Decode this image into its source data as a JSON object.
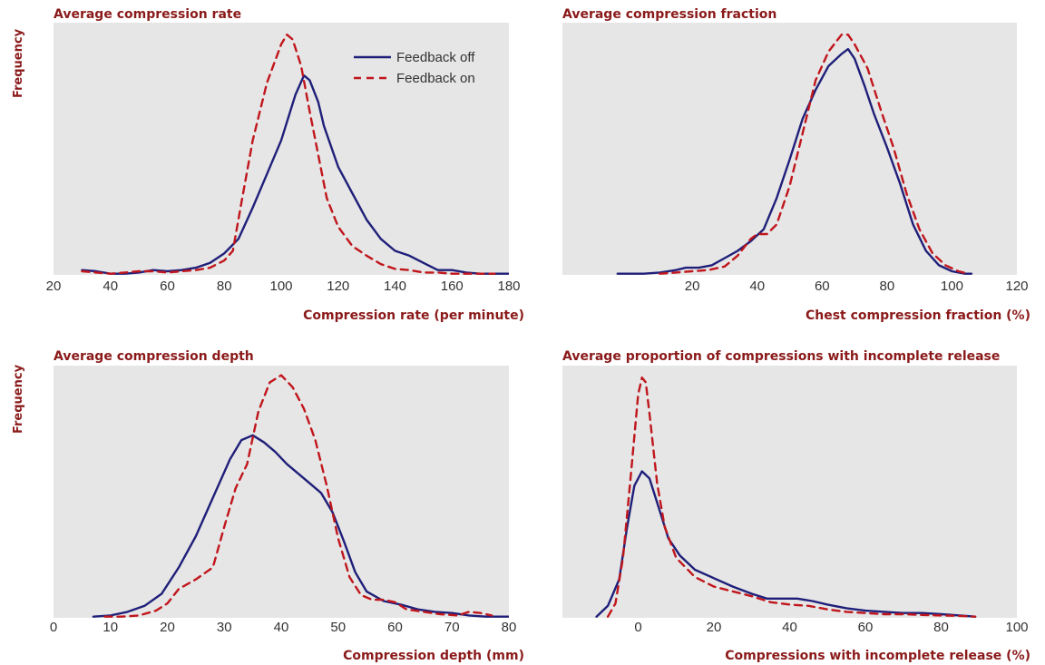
{
  "colors": {
    "off": "#1f1f7a",
    "on": "#c0161c",
    "panel": "#e6e6e6",
    "title": "#8b1a1a",
    "tick": "#333333"
  },
  "legend": {
    "off": "Feedback off",
    "on": "Feedback on"
  },
  "chart_data": [
    {
      "type": "line",
      "title": "Average compression rate",
      "xlabel": "Compression rate (per minute)",
      "ylabel": "Frequency",
      "xlim": [
        20,
        180
      ],
      "xticks": [
        "20",
        "40",
        "60",
        "80",
        "100",
        "120",
        "140",
        "160",
        "180"
      ],
      "ylim": [
        0,
        1.05
      ],
      "grid": false,
      "legend_position": "top-right",
      "series": [
        {
          "name": "Feedback off",
          "style": "solid",
          "points": [
            [
              30,
              0.02
            ],
            [
              35,
              0.015
            ],
            [
              40,
              0.005
            ],
            [
              45,
              0.005
            ],
            [
              50,
              0.01
            ],
            [
              55,
              0.02
            ],
            [
              60,
              0.015
            ],
            [
              65,
              0.02
            ],
            [
              70,
              0.03
            ],
            [
              75,
              0.05
            ],
            [
              80,
              0.09
            ],
            [
              85,
              0.15
            ],
            [
              90,
              0.28
            ],
            [
              95,
              0.42
            ],
            [
              100,
              0.56
            ],
            [
              105,
              0.75
            ],
            [
              108,
              0.83
            ],
            [
              110,
              0.81
            ],
            [
              113,
              0.72
            ],
            [
              115,
              0.62
            ],
            [
              120,
              0.45
            ],
            [
              125,
              0.34
            ],
            [
              130,
              0.23
            ],
            [
              135,
              0.15
            ],
            [
              140,
              0.1
            ],
            [
              145,
              0.08
            ],
            [
              150,
              0.05
            ],
            [
              155,
              0.02
            ],
            [
              160,
              0.02
            ],
            [
              165,
              0.01
            ],
            [
              170,
              0.005
            ],
            [
              175,
              0.005
            ],
            [
              180,
              0.005
            ]
          ]
        },
        {
          "name": "Feedback on",
          "style": "dashed",
          "points": [
            [
              30,
              0.015
            ],
            [
              35,
              0.01
            ],
            [
              40,
              0.005
            ],
            [
              45,
              0.01
            ],
            [
              50,
              0.015
            ],
            [
              55,
              0.015
            ],
            [
              60,
              0.01
            ],
            [
              65,
              0.015
            ],
            [
              70,
              0.02
            ],
            [
              75,
              0.03
            ],
            [
              80,
              0.06
            ],
            [
              83,
              0.1
            ],
            [
              86,
              0.3
            ],
            [
              90,
              0.56
            ],
            [
              95,
              0.8
            ],
            [
              100,
              0.96
            ],
            [
              102,
              1.0
            ],
            [
              104,
              0.98
            ],
            [
              107,
              0.87
            ],
            [
              110,
              0.68
            ],
            [
              113,
              0.5
            ],
            [
              116,
              0.32
            ],
            [
              120,
              0.2
            ],
            [
              125,
              0.12
            ],
            [
              130,
              0.08
            ],
            [
              135,
              0.045
            ],
            [
              140,
              0.025
            ],
            [
              145,
              0.02
            ],
            [
              150,
              0.01
            ],
            [
              155,
              0.01
            ],
            [
              160,
              0.005
            ],
            [
              165,
              0.005
            ],
            [
              170,
              0.005
            ],
            [
              175,
              0.005
            ]
          ]
        }
      ]
    },
    {
      "type": "line",
      "title": "Average compression fraction",
      "xlabel": "Chest compression fraction (%)",
      "ylabel": "",
      "xlim": [
        -20,
        120
      ],
      "xticks": [
        "20",
        "40",
        "60",
        "80",
        "100",
        "120"
      ],
      "ylim": [
        0,
        1.05
      ],
      "grid": false,
      "series": [
        {
          "name": "Feedback off",
          "style": "solid",
          "points": [
            [
              -3,
              0.005
            ],
            [
              0,
              0.005
            ],
            [
              5,
              0.005
            ],
            [
              10,
              0.01
            ],
            [
              15,
              0.02
            ],
            [
              18,
              0.03
            ],
            [
              22,
              0.03
            ],
            [
              26,
              0.04
            ],
            [
              30,
              0.07
            ],
            [
              34,
              0.1
            ],
            [
              38,
              0.14
            ],
            [
              42,
              0.19
            ],
            [
              46,
              0.32
            ],
            [
              50,
              0.48
            ],
            [
              54,
              0.65
            ],
            [
              58,
              0.77
            ],
            [
              62,
              0.87
            ],
            [
              66,
              0.92
            ],
            [
              68,
              0.94
            ],
            [
              70,
              0.9
            ],
            [
              73,
              0.79
            ],
            [
              76,
              0.67
            ],
            [
              80,
              0.53
            ],
            [
              84,
              0.38
            ],
            [
              88,
              0.21
            ],
            [
              92,
              0.1
            ],
            [
              96,
              0.04
            ],
            [
              100,
              0.015
            ],
            [
              104,
              0.005
            ],
            [
              106,
              0.005
            ]
          ]
        },
        {
          "name": "Feedback on",
          "style": "dashed",
          "points": [
            [
              10,
              0.005
            ],
            [
              15,
              0.01
            ],
            [
              20,
              0.015
            ],
            [
              25,
              0.02
            ],
            [
              30,
              0.035
            ],
            [
              34,
              0.08
            ],
            [
              38,
              0.15
            ],
            [
              40,
              0.17
            ],
            [
              43,
              0.17
            ],
            [
              46,
              0.21
            ],
            [
              50,
              0.37
            ],
            [
              54,
              0.59
            ],
            [
              58,
              0.81
            ],
            [
              62,
              0.93
            ],
            [
              66,
              1.0
            ],
            [
              68,
              1.0
            ],
            [
              70,
              0.96
            ],
            [
              74,
              0.86
            ],
            [
              78,
              0.69
            ],
            [
              82,
              0.53
            ],
            [
              86,
              0.34
            ],
            [
              90,
              0.19
            ],
            [
              94,
              0.09
            ],
            [
              98,
              0.04
            ],
            [
              102,
              0.015
            ],
            [
              105,
              0.005
            ]
          ]
        }
      ]
    },
    {
      "type": "line",
      "title": "Average compression depth",
      "xlabel": "Compression depth (mm)",
      "ylabel": "Frequency",
      "xlim": [
        0,
        80
      ],
      "xticks": [
        "0",
        "10",
        "20",
        "30",
        "40",
        "50",
        "60",
        "70",
        "80"
      ],
      "ylim": [
        0,
        1.05
      ],
      "grid": false,
      "series": [
        {
          "name": "Feedback off",
          "style": "solid",
          "points": [
            [
              7,
              0.005
            ],
            [
              10,
              0.01
            ],
            [
              13,
              0.025
            ],
            [
              16,
              0.05
            ],
            [
              19,
              0.1
            ],
            [
              22,
              0.21
            ],
            [
              25,
              0.34
            ],
            [
              28,
              0.5
            ],
            [
              31,
              0.66
            ],
            [
              33,
              0.74
            ],
            [
              35,
              0.76
            ],
            [
              37,
              0.73
            ],
            [
              39,
              0.69
            ],
            [
              41,
              0.64
            ],
            [
              43,
              0.6
            ],
            [
              45,
              0.56
            ],
            [
              47,
              0.52
            ],
            [
              49,
              0.44
            ],
            [
              51,
              0.32
            ],
            [
              53,
              0.19
            ],
            [
              55,
              0.11
            ],
            [
              58,
              0.07
            ],
            [
              61,
              0.055
            ],
            [
              64,
              0.035
            ],
            [
              67,
              0.025
            ],
            [
              70,
              0.02
            ],
            [
              73,
              0.01
            ],
            [
              76,
              0.005
            ],
            [
              80,
              0.005
            ]
          ]
        },
        {
          "name": "Feedback on",
          "style": "dashed",
          "points": [
            [
              9,
              0.005
            ],
            [
              12,
              0.005
            ],
            [
              15,
              0.01
            ],
            [
              18,
              0.03
            ],
            [
              20,
              0.06
            ],
            [
              22,
              0.12
            ],
            [
              25,
              0.16
            ],
            [
              28,
              0.21
            ],
            [
              30,
              0.38
            ],
            [
              32,
              0.54
            ],
            [
              34,
              0.64
            ],
            [
              36,
              0.86
            ],
            [
              38,
              0.98
            ],
            [
              40,
              1.01
            ],
            [
              42,
              0.96
            ],
            [
              44,
              0.87
            ],
            [
              46,
              0.74
            ],
            [
              48,
              0.55
            ],
            [
              50,
              0.33
            ],
            [
              52,
              0.17
            ],
            [
              54,
              0.095
            ],
            [
              56,
              0.075
            ],
            [
              58,
              0.075
            ],
            [
              60,
              0.065
            ],
            [
              62,
              0.035
            ],
            [
              65,
              0.025
            ],
            [
              68,
              0.015
            ],
            [
              71,
              0.01
            ],
            [
              73,
              0.025
            ],
            [
              75,
              0.02
            ],
            [
              77,
              0.01
            ]
          ]
        }
      ]
    },
    {
      "type": "line",
      "title": "Average proportion of compressions with incomplete release",
      "xlabel": "Compressions with incomplete release (%)",
      "ylabel": "",
      "xlim": [
        -20,
        100
      ],
      "xticks": [
        "0",
        "20",
        "40",
        "60",
        "80",
        "100"
      ],
      "ylim": [
        0,
        1.05
      ],
      "grid": false,
      "series": [
        {
          "name": "Feedback off",
          "style": "solid",
          "points": [
            [
              -11,
              0.005
            ],
            [
              -8,
              0.05
            ],
            [
              -5,
              0.16
            ],
            [
              -3,
              0.37
            ],
            [
              -1,
              0.55
            ],
            [
              1,
              0.61
            ],
            [
              3,
              0.58
            ],
            [
              5,
              0.48
            ],
            [
              8,
              0.33
            ],
            [
              11,
              0.26
            ],
            [
              15,
              0.2
            ],
            [
              20,
              0.165
            ],
            [
              25,
              0.13
            ],
            [
              30,
              0.1
            ],
            [
              34,
              0.08
            ],
            [
              38,
              0.08
            ],
            [
              42,
              0.08
            ],
            [
              46,
              0.07
            ],
            [
              50,
              0.055
            ],
            [
              55,
              0.04
            ],
            [
              60,
              0.03
            ],
            [
              65,
              0.025
            ],
            [
              70,
              0.02
            ],
            [
              75,
              0.02
            ],
            [
              80,
              0.015
            ],
            [
              85,
              0.01
            ],
            [
              89,
              0.005
            ]
          ]
        },
        {
          "name": "Feedback on",
          "style": "dashed",
          "points": [
            [
              -8,
              0.005
            ],
            [
              -6,
              0.06
            ],
            [
              -4,
              0.25
            ],
            [
              -2,
              0.58
            ],
            [
              0,
              0.93
            ],
            [
              1,
              1.0
            ],
            [
              2,
              0.98
            ],
            [
              3,
              0.85
            ],
            [
              5,
              0.56
            ],
            [
              7,
              0.38
            ],
            [
              10,
              0.25
            ],
            [
              15,
              0.17
            ],
            [
              20,
              0.13
            ],
            [
              25,
              0.11
            ],
            [
              30,
              0.09
            ],
            [
              35,
              0.065
            ],
            [
              40,
              0.055
            ],
            [
              45,
              0.05
            ],
            [
              50,
              0.035
            ],
            [
              55,
              0.025
            ],
            [
              60,
              0.02
            ],
            [
              65,
              0.015
            ],
            [
              70,
              0.015
            ],
            [
              75,
              0.012
            ],
            [
              80,
              0.01
            ],
            [
              85,
              0.008
            ],
            [
              89,
              0.005
            ]
          ]
        }
      ]
    }
  ]
}
